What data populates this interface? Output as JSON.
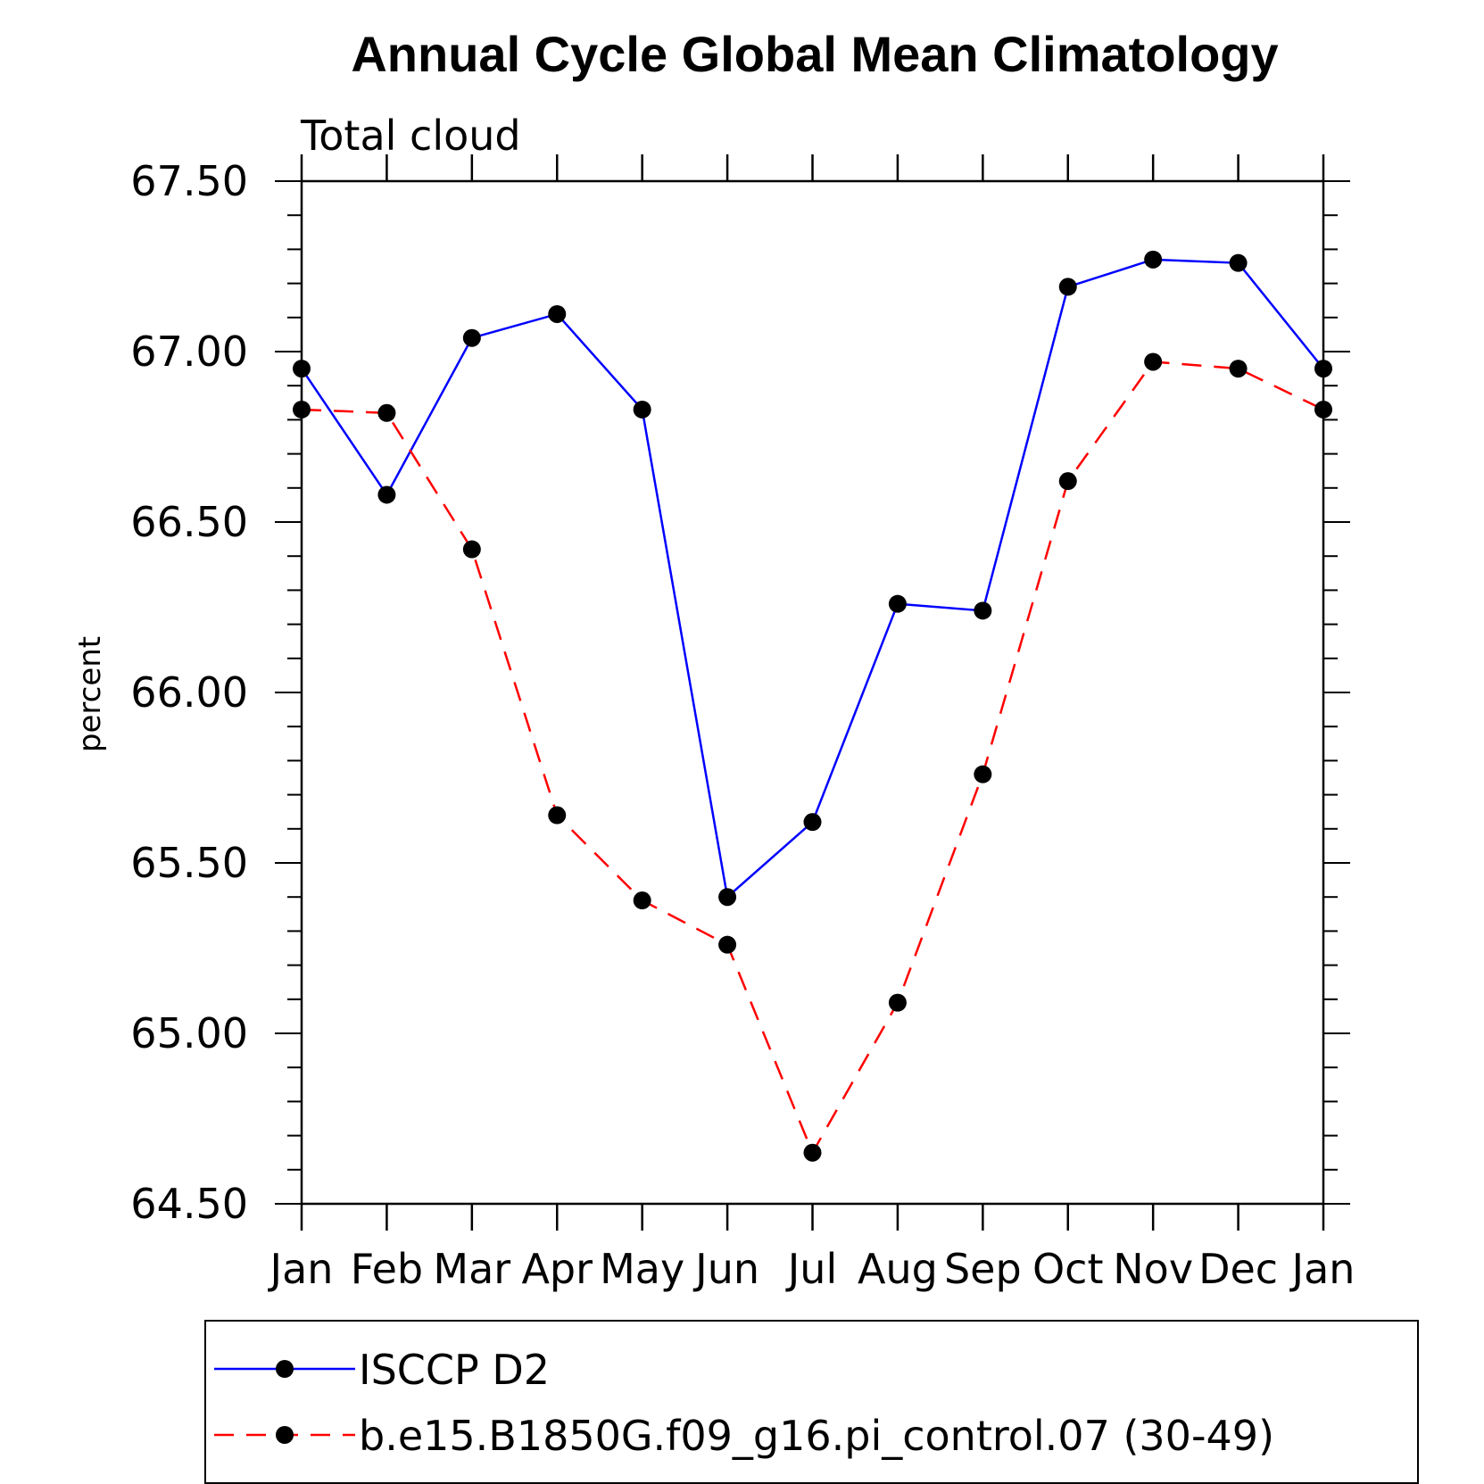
{
  "chart_data": {
    "type": "line",
    "title": "Annual Cycle Global Mean Climatology",
    "subtitle": "Total cloud",
    "ylabel": "percent",
    "xlabel": "",
    "categories": [
      "Jan",
      "Feb",
      "Mar",
      "Apr",
      "May",
      "Jun",
      "Jul",
      "Aug",
      "Sep",
      "Oct",
      "Nov",
      "Dec",
      "Jan"
    ],
    "ylim": [
      64.5,
      67.5
    ],
    "yticks": [
      "64.50",
      "65.00",
      "65.50",
      "66.00",
      "66.50",
      "67.00",
      "67.50"
    ],
    "series": [
      {
        "name": "ISCCP D2",
        "color": "#0000ff",
        "dash": "solid",
        "values": [
          66.95,
          66.58,
          67.04,
          67.11,
          66.83,
          65.4,
          65.62,
          66.26,
          66.24,
          67.19,
          67.27,
          67.26,
          66.95
        ]
      },
      {
        "name": "b.e15.B1850G.f09_g16.pi_control.07 (30-49)",
        "color": "#ff0000",
        "dash": "dashed",
        "values": [
          66.83,
          66.82,
          66.42,
          65.64,
          65.39,
          65.26,
          64.65,
          65.09,
          65.76,
          66.62,
          66.97,
          66.95,
          66.83
        ]
      }
    ],
    "marker": "filled-circle",
    "legend_position": "bottom"
  }
}
